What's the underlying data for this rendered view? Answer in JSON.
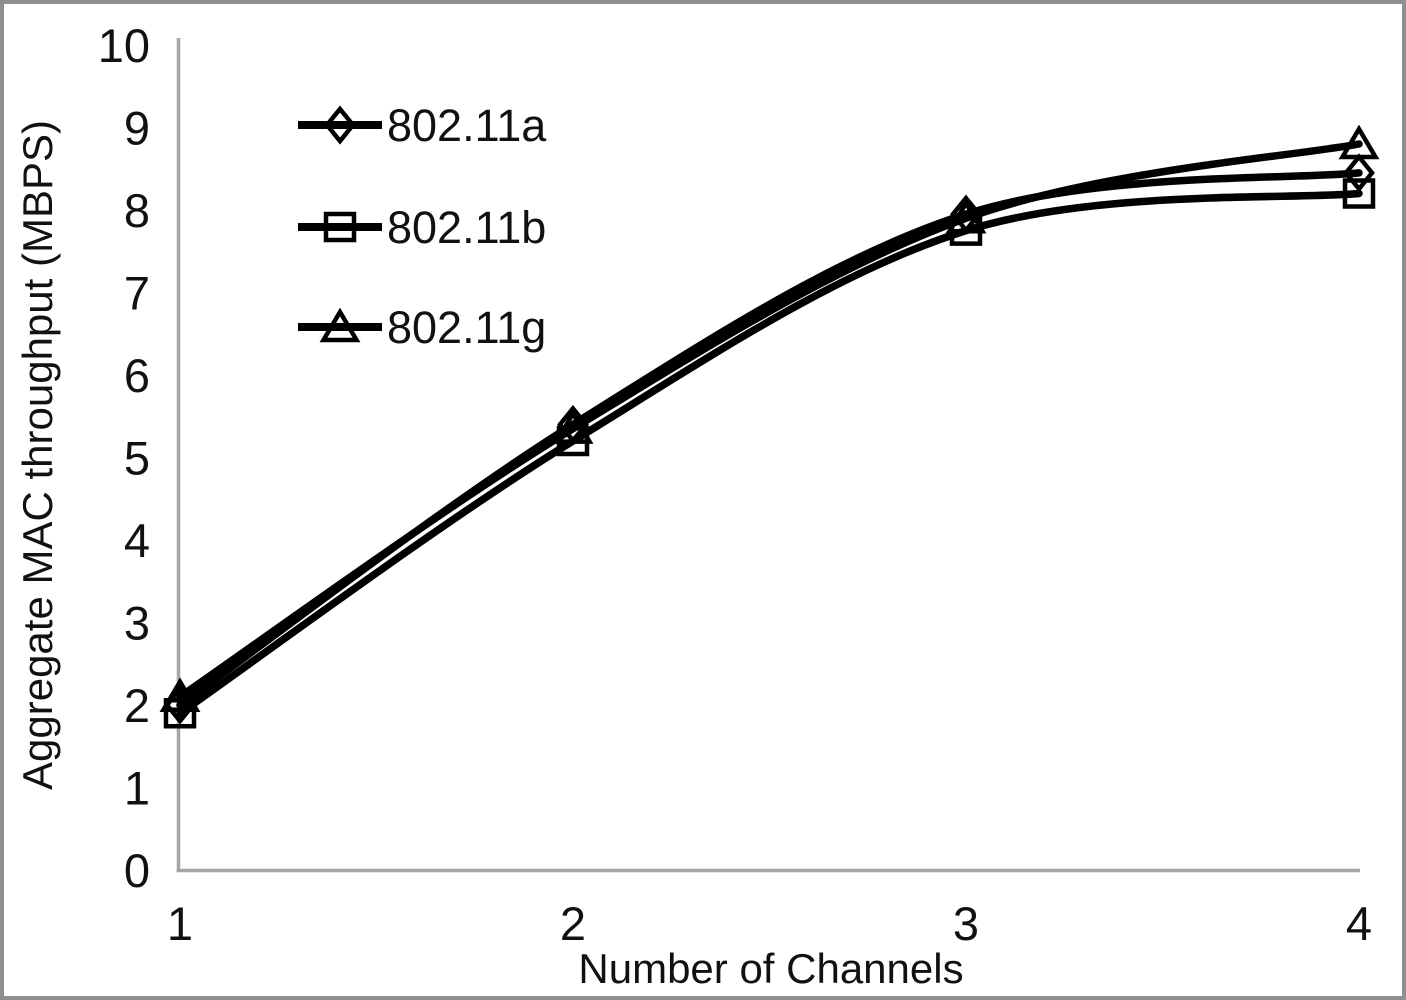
{
  "figure": {
    "background": "#ffffff",
    "border_color": "#8f8f8f"
  },
  "chart_data": {
    "type": "line",
    "title": "",
    "xlabel": "Number of Channels",
    "ylabel": "Aggregate MAC throughput (MBPS)",
    "x": [
      1,
      2,
      3,
      4
    ],
    "x_tick_labels": [
      "1",
      "2",
      "3",
      "4"
    ],
    "y_tick_labels": [
      "0",
      "1",
      "2",
      "3",
      "4",
      "5",
      "6",
      "7",
      "8",
      "9",
      "10"
    ],
    "xlim": [
      1,
      4
    ],
    "ylim": [
      0,
      10
    ],
    "grid": false,
    "legend_position": "inside-top-left",
    "line_color": "#000000",
    "axis_color": "#a6a6a6",
    "series": [
      {
        "name": "802.11a",
        "marker": "diamond",
        "values": [
          2.0,
          5.4,
          7.95,
          8.45
        ]
      },
      {
        "name": "802.11b",
        "marker": "square",
        "values": [
          1.9,
          5.2,
          7.75,
          8.2
        ]
      },
      {
        "name": "802.11g",
        "marker": "triangle",
        "values": [
          2.1,
          5.35,
          7.9,
          8.8
        ]
      }
    ]
  }
}
